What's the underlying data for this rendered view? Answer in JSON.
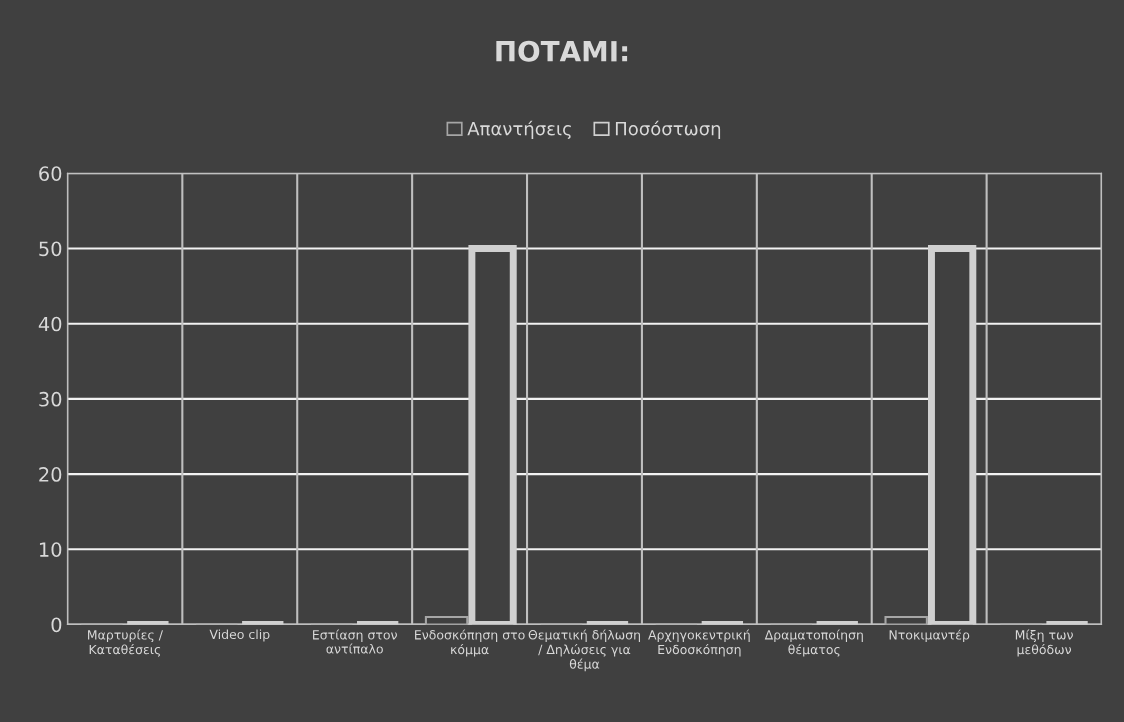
{
  "chart_data": {
    "type": "bar",
    "title": "ΠΟΤΑΜΙ:",
    "categories": [
      "Μαρτυρίες / Καταθέσεις",
      "Video clip",
      "Εστίαση στον αντίπαλο",
      "Ενδοσκόπηση στο κόμμα",
      "Θεματική δήλωση / Δηλώσεις για θέμα",
      "Αρχηγοκεντρική Ενδοσκόπηση",
      "Δραματοποίηση θέματος",
      "Ντοκιμαντέρ",
      "Μίξη των μεθόδων"
    ],
    "series": [
      {
        "name": "Απαντήσεις",
        "color": "#a6a6a6",
        "values": [
          0,
          0,
          0,
          1,
          0,
          0,
          0,
          1,
          0
        ]
      },
      {
        "name": "Ποσόστωση",
        "color": "#d0d0d0",
        "values": [
          0,
          0,
          0,
          50,
          0,
          0,
          0,
          50,
          0
        ]
      }
    ],
    "ylim": [
      0,
      60
    ],
    "yticks": [
      0,
      10,
      20,
      30,
      40,
      50,
      60
    ],
    "grid": true,
    "legend": "top"
  }
}
